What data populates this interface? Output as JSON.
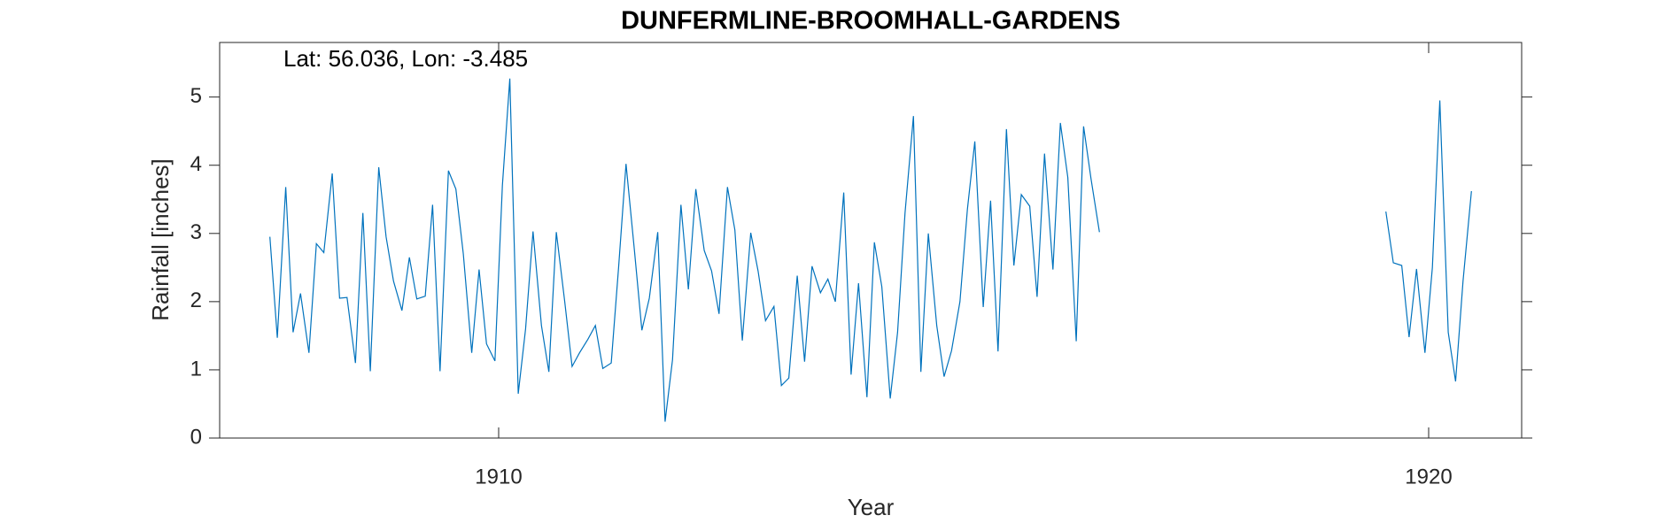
{
  "chart_data": {
    "type": "line",
    "title": "DUNFERMLINE-BROOMHALL-GARDENS",
    "annotation": "Lat: 56.036, Lon: -3.485",
    "x_label": "Year",
    "y_label": "Rainfall [inches]",
    "xlim": [
      1907,
      1921
    ],
    "ylim": [
      0,
      5.8
    ],
    "xticks": [
      1910,
      1920
    ],
    "yticks": [
      0,
      1,
      2,
      3,
      4,
      5
    ],
    "series": [
      {
        "color": "#0072bd",
        "x": [
          1907.54,
          1907.62,
          1907.71,
          1907.79,
          1907.87,
          1907.96,
          1908.04,
          1908.12,
          1908.21,
          1908.29,
          1908.37,
          1908.46,
          1908.54,
          1908.62,
          1908.71,
          1908.79,
          1908.87,
          1908.96,
          1909.04,
          1909.12,
          1909.21,
          1909.29,
          1909.37,
          1909.46,
          1909.54,
          1909.62,
          1909.71,
          1909.79,
          1909.87,
          1909.96,
          1910.04,
          1910.12,
          1910.21,
          1910.29,
          1910.37,
          1910.46,
          1910.54,
          1910.62,
          1910.71,
          1910.79,
          1910.87,
          1910.96,
          1911.04,
          1911.12,
          1911.21,
          1911.29,
          1911.37,
          1911.46,
          1911.54,
          1911.62,
          1911.71,
          1911.79,
          1911.87,
          1911.96,
          1912.04,
          1912.12,
          1912.21,
          1912.29,
          1912.37,
          1912.46,
          1912.54,
          1912.62,
          1912.71,
          1912.79,
          1912.87,
          1912.96,
          1913.04,
          1913.12,
          1913.21,
          1913.29,
          1913.37,
          1913.46,
          1913.54,
          1913.62,
          1913.71,
          1913.79,
          1913.87,
          1913.96,
          1914.04,
          1914.12,
          1914.21,
          1914.29,
          1914.37,
          1914.46,
          1914.54,
          1914.62,
          1914.71,
          1914.79,
          1914.87,
          1914.96,
          1915.04,
          1915.12,
          1915.21,
          1915.29,
          1915.37,
          1915.46,
          1915.54,
          1915.62,
          1915.71,
          1915.79,
          1915.87,
          1915.96,
          1916.04,
          1916.12,
          1916.21,
          1916.29,
          1916.37,
          1916.46,
          1918.0,
          1919.54,
          1919.62,
          1919.71,
          1919.79,
          1919.87,
          1919.96,
          1920.04,
          1920.12,
          1920.21,
          1920.29,
          1920.37,
          1920.46
        ],
        "values": [
          2.95,
          1.47,
          3.68,
          1.55,
          2.12,
          1.25,
          2.85,
          2.72,
          3.88,
          2.05,
          2.06,
          1.1,
          3.3,
          0.98,
          3.97,
          2.95,
          2.3,
          1.87,
          2.65,
          2.04,
          2.08,
          3.42,
          0.98,
          3.92,
          3.65,
          2.7,
          1.25,
          2.47,
          1.38,
          1.13,
          3.7,
          5.27,
          0.65,
          1.6,
          3.03,
          1.65,
          0.97,
          3.02,
          2.0,
          1.05,
          1.25,
          1.45,
          1.65,
          1.02,
          1.1,
          2.5,
          4.02,
          2.75,
          1.58,
          2.05,
          3.02,
          0.24,
          1.15,
          3.42,
          2.18,
          3.65,
          2.75,
          2.45,
          1.82,
          3.68,
          3.05,
          1.43,
          3.01,
          2.45,
          1.72,
          1.93,
          0.77,
          0.88,
          2.38,
          1.12,
          2.52,
          2.13,
          2.33,
          2.0,
          3.6,
          0.93,
          2.27,
          0.6,
          2.87,
          2.22,
          0.58,
          1.55,
          3.3,
          4.72,
          0.97,
          3.0,
          1.65,
          0.9,
          1.28,
          2.0,
          3.35,
          4.35,
          1.92,
          3.48,
          1.27,
          4.53,
          2.53,
          3.57,
          3.4,
          2.07,
          4.17,
          2.47,
          4.62,
          3.82,
          1.42,
          4.57,
          3.8,
          3.02,
          null,
          3.32,
          2.57,
          2.53,
          1.48,
          2.48,
          1.25,
          2.5,
          4.95,
          1.55,
          0.83,
          2.3,
          3.62
        ]
      }
    ]
  }
}
